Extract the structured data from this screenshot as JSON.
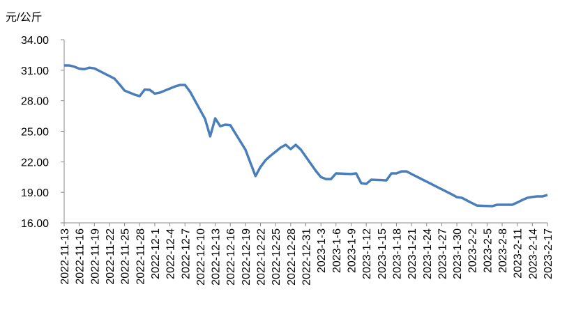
{
  "chart_data": {
    "type": "line",
    "y_label": "元/公斤",
    "categories": [
      "2022-11-13",
      null,
      null,
      "2022-11-16",
      null,
      null,
      "2022-11-19",
      null,
      null,
      "2022-11-22",
      null,
      null,
      "2022-11-25",
      null,
      null,
      "2022-11-28",
      null,
      null,
      "2022-12-1",
      null,
      null,
      "2022-12-4",
      null,
      null,
      "2022-12-7",
      null,
      null,
      "2022-12-10",
      null,
      null,
      "2022-12-13",
      null,
      null,
      "2022-12-16",
      null,
      null,
      "2022-12-19",
      null,
      null,
      "2022-12-22",
      null,
      null,
      "2022-12-25",
      null,
      null,
      "2022-12-28",
      null,
      null,
      "2022-12-31",
      null,
      null,
      "2023-1-3",
      null,
      null,
      "2023-1-6",
      null,
      null,
      "2023-1-9",
      null,
      null,
      "2023-1-12",
      null,
      null,
      "2023-1-15",
      null,
      null,
      "2023-1-18",
      null,
      null,
      "2023-1-21",
      null,
      null,
      "2023-1-24",
      null,
      null,
      "2023-1-27",
      null,
      null,
      "2023-1-30",
      null,
      null,
      "2023-2-2",
      null,
      null,
      "2023-2-5",
      null,
      null,
      "2023-2-8",
      null,
      null,
      "2023-2-11",
      null,
      null,
      "2023-2-14",
      null,
      null,
      "2023-2-17"
    ],
    "values": [
      31.47,
      31.47,
      31.35,
      31.15,
      31.1,
      31.25,
      31.18,
      30.93,
      30.68,
      30.43,
      30.17,
      29.6,
      29.0,
      28.8,
      28.6,
      28.45,
      29.1,
      29.07,
      28.7,
      28.8,
      29.0,
      29.2,
      29.4,
      29.55,
      29.55,
      28.9,
      28.0,
      27.1,
      26.2,
      24.5,
      26.27,
      25.5,
      25.65,
      25.6,
      24.8,
      24.0,
      23.2,
      21.9,
      20.6,
      21.5,
      22.16,
      22.6,
      23.0,
      23.4,
      23.67,
      23.25,
      23.67,
      23.2,
      22.5,
      21.8,
      21.1,
      20.5,
      20.3,
      20.3,
      20.86,
      20.84,
      20.82,
      20.8,
      20.86,
      19.9,
      19.83,
      20.24,
      20.22,
      20.2,
      20.17,
      20.86,
      20.86,
      21.06,
      21.06,
      20.8,
      20.55,
      20.3,
      20.05,
      19.8,
      19.55,
      19.3,
      19.05,
      18.8,
      18.53,
      18.46,
      18.2,
      17.95,
      17.7,
      17.68,
      17.66,
      17.64,
      17.78,
      17.78,
      17.78,
      17.78,
      18.0,
      18.25,
      18.46,
      18.55,
      18.6,
      18.6,
      18.74
    ],
    "color": "#4a7ebb",
    "ylim": [
      16,
      34
    ],
    "yticks": [
      {
        "value": 16,
        "label": "16.00"
      },
      {
        "value": 19,
        "label": "19.00"
      },
      {
        "value": 22,
        "label": "22.00"
      },
      {
        "value": 25,
        "label": "25.00"
      },
      {
        "value": 28,
        "label": "28.00"
      },
      {
        "value": 31,
        "label": "31.00"
      },
      {
        "value": 34,
        "label": "34.00"
      }
    ],
    "grid": false
  }
}
